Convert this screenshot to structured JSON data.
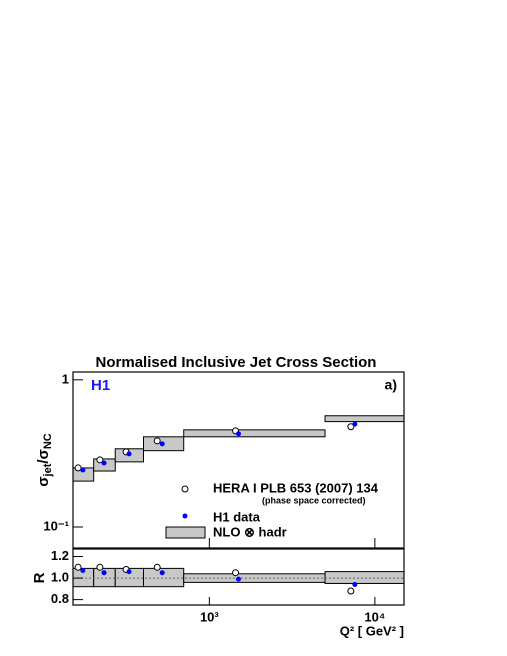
{
  "chart_data": [
    {
      "type": "scatter",
      "title": "Normalised Inclusive Jet Cross Section",
      "experiment": "H1",
      "panel_label": "a)",
      "ylabel": [
        "σ",
        "jet",
        "/σ",
        "NC"
      ],
      "xscale": "log",
      "yscale": "log",
      "xlim": [
        150,
        15000
      ],
      "ylim": [
        0.072,
        1.13
      ],
      "yticks": [
        1,
        {
          "value": 0.1,
          "label": "10⁻¹"
        }
      ],
      "series": [
        {
          "name": "HERA I PLB 653 (2007) 134",
          "note": "(phase space corrected)",
          "marker": "open",
          "color": "#000000",
          "x": [
            161,
            218,
            314,
            484,
            1440,
            7160
          ],
          "values": [
            0.252,
            0.286,
            0.324,
            0.385,
            0.45,
            0.48
          ]
        },
        {
          "name": "H1 data",
          "marker": "filled",
          "color": "#0000ff",
          "x": [
            172,
            231,
            327,
            519,
            1500,
            7570
          ],
          "values": [
            0.244,
            0.272,
            0.314,
            0.367,
            0.43,
            0.5
          ]
        }
      ],
      "band": {
        "name": "NLO ⊗ hadr",
        "color": "#c8c8c8",
        "bins": [
          150,
          200,
          270,
          400,
          700,
          5000,
          15000
        ],
        "lower": [
          0.205,
          0.24,
          0.277,
          0.33,
          0.41,
          0.52
        ],
        "upper": [
          0.252,
          0.29,
          0.34,
          0.41,
          0.457,
          0.57
        ]
      }
    },
    {
      "type": "scatter",
      "ylabel": "R",
      "xlabel": "Q² [ GeV² ]",
      "xscale": "log",
      "xlim": [
        150,
        15000
      ],
      "ylim": [
        0.75,
        1.27
      ],
      "xticks": [
        {
          "value": 1000,
          "label": "10³"
        },
        {
          "value": 10000,
          "label": "10⁴"
        }
      ],
      "yticks": [
        0.8,
        {
          "value": 1,
          "label": "1.0"
        },
        1.2
      ],
      "reference": 1,
      "series": [
        {
          "marker": "open",
          "color": "#000000",
          "x": [
            161,
            218,
            314,
            484,
            1440,
            7160
          ],
          "values": [
            1.1,
            1.1,
            1.08,
            1.1,
            1.05,
            0.88
          ]
        },
        {
          "marker": "filled",
          "color": "#0000ff",
          "x": [
            172,
            231,
            327,
            519,
            1500,
            7570
          ],
          "values": [
            1.07,
            1.05,
            1.06,
            1.05,
            0.99,
            0.94
          ]
        }
      ],
      "band": {
        "color": "#c8c8c8",
        "bins": [
          150,
          200,
          270,
          400,
          700,
          5000,
          15000
        ],
        "lower": [
          0.92,
          0.92,
          0.92,
          0.92,
          0.96,
          0.95
        ],
        "upper": [
          1.09,
          1.09,
          1.09,
          1.09,
          1.04,
          1.06
        ]
      }
    }
  ]
}
